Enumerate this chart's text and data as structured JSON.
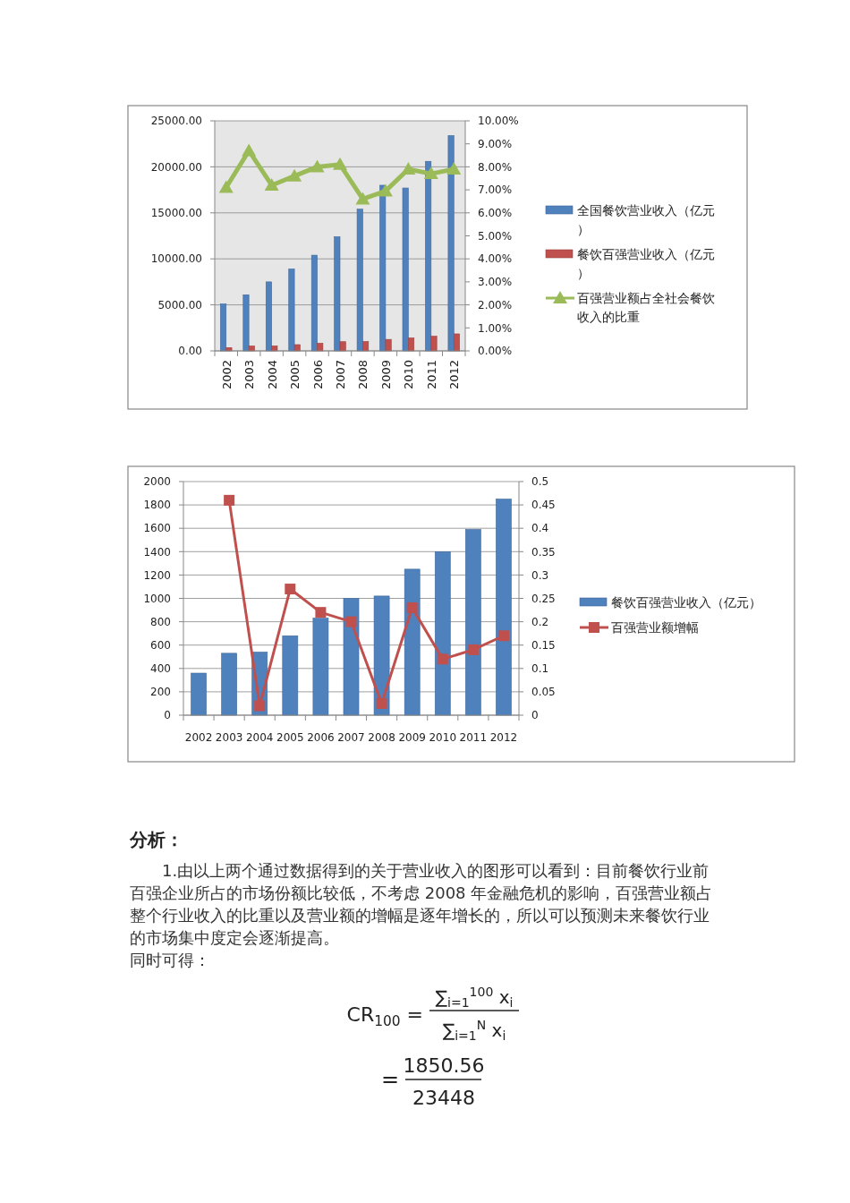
{
  "chart_data": [
    {
      "type": "bar",
      "categories": [
        "2002",
        "2003",
        "2004",
        "2005",
        "2006",
        "2007",
        "2008",
        "2009",
        "2010",
        "2011",
        "2012"
      ],
      "series": [
        {
          "name": "全国餐饮营业收入（亿元）",
          "color": "#4f81bd",
          "values": [
            5100,
            6100,
            7500,
            8900,
            10400,
            12400,
            15400,
            18000,
            17700,
            20600,
            23400
          ]
        },
        {
          "name": "餐饮百强营业收入（亿元）",
          "color": "#c0504d",
          "values": [
            360,
            530,
            540,
            680,
            830,
            1000,
            1020,
            1250,
            1400,
            1590,
            1850
          ]
        },
        {
          "name": "百强营业额占全社会餐饮收入的比重",
          "type": "line",
          "axis": "y2",
          "color": "#9bbb59",
          "marker": "triangle",
          "values": [
            7.1,
            8.7,
            7.2,
            7.6,
            8.0,
            8.1,
            6.6,
            6.95,
            7.9,
            7.7,
            7.9
          ]
        }
      ],
      "ylim": [
        0,
        25000
      ],
      "yticks": [
        {
          "value": 0,
          "label": "0.00"
        },
        {
          "value": 5000,
          "label": "5000.00"
        },
        {
          "value": 10000,
          "label": "10000.00"
        },
        {
          "value": 15000,
          "label": "15000.00"
        },
        {
          "value": 20000,
          "label": "20000.00"
        },
        {
          "value": 25000,
          "label": "25000.00"
        }
      ],
      "y2lim": [
        0,
        10
      ],
      "y2ticks": [
        {
          "value": 0,
          "label": "0.00%"
        },
        {
          "value": 1,
          "label": "1.00%"
        },
        {
          "value": 2,
          "label": "2.00%"
        },
        {
          "value": 3,
          "label": "3.00%"
        },
        {
          "value": 4,
          "label": "4.00%"
        },
        {
          "value": 5,
          "label": "5.00%"
        },
        {
          "value": 6,
          "label": "6.00%"
        },
        {
          "value": 7,
          "label": "7.00%"
        },
        {
          "value": 8,
          "label": "8.00%"
        },
        {
          "value": 9,
          "label": "9.00%"
        },
        {
          "value": 10,
          "label": "10.00%"
        }
      ],
      "grid": "y",
      "legend": "right"
    },
    {
      "type": "bar",
      "categories": [
        "2002",
        "2003",
        "2004",
        "2005",
        "2006",
        "2007",
        "2008",
        "2009",
        "2010",
        "2011",
        "2012"
      ],
      "series": [
        {
          "name": "餐饮百强营业收入（亿元）",
          "color": "#4f81bd",
          "values": [
            360,
            530,
            540,
            680,
            830,
            1000,
            1020,
            1250,
            1400,
            1590,
            1850
          ]
        },
        {
          "name": "百强营业额增幅",
          "type": "line",
          "axis": "y2",
          "color": "#c0504d",
          "marker": "square",
          "values": [
            null,
            0.46,
            0.02,
            0.27,
            0.22,
            0.2,
            0.025,
            0.23,
            0.12,
            0.14,
            0.17
          ]
        }
      ],
      "ylim": [
        0,
        2000
      ],
      "yticks": [
        0,
        200,
        400,
        600,
        800,
        1000,
        1200,
        1400,
        1600,
        1800,
        2000
      ],
      "y2lim": [
        0,
        0.5
      ],
      "y2ticks": [
        0,
        0.05,
        0.1,
        0.15,
        0.2,
        0.25,
        0.3,
        0.35,
        0.4,
        0.45,
        0.5
      ],
      "grid": "y",
      "legend": "right",
      "annotations": [
        "分析：",
        "1.由以上两个通过数据得到的关于营业收入的图形可以看到：目前餐饮行业前百强企业所占的市场份额比较低，不考虑 2008 年金融危机的影响，百强营业额占整个行业收入的比重以及营业额的增幅是逐年增长的，所以可以预测未来餐饮行业的市场集中度定会逐渐提高。",
        "同时可得：",
        "CR$_{100}$ =",
        "∑$_{i=1}$$^{100}$ x$_{i}$",
        "∑$_{i=1}$$^{N}$ x$_{i}$",
        "=",
        "1850.56",
        "23448"
      ]
    }
  ]
}
